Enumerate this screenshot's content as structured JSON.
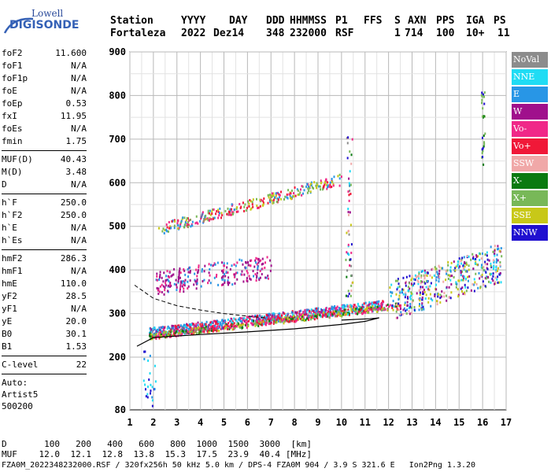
{
  "logo": {
    "line1": "Lowell",
    "line2": "DIGISONDE"
  },
  "header": {
    "labels": [
      "Station",
      "YYYY",
      "DAY",
      "DDD",
      "HHMMSS",
      "P1",
      "FFS",
      "S",
      "AXN",
      "PPS",
      "IGA",
      "PS"
    ],
    "values": [
      "Fortaleza",
      "2022",
      "Dez14",
      "348",
      "232000",
      "RSF",
      "",
      "1",
      "714",
      "100",
      "10+",
      "11"
    ]
  },
  "params": {
    "group1": [
      {
        "name": "foF2",
        "value": "11.600"
      },
      {
        "name": "foF1",
        "value": "N/A"
      },
      {
        "name": "foF1p",
        "value": "N/A"
      },
      {
        "name": "foE",
        "value": "N/A"
      },
      {
        "name": "foEp",
        "value": "0.53"
      },
      {
        "name": "fxI",
        "value": "11.95"
      },
      {
        "name": "foEs",
        "value": "N/A"
      },
      {
        "name": "fmin",
        "value": "1.75"
      }
    ],
    "group2": [
      {
        "name": "MUF(D)",
        "value": "40.43"
      },
      {
        "name": "M(D)",
        "value": "3.48"
      },
      {
        "name": "D",
        "value": "N/A"
      }
    ],
    "group3": [
      {
        "name": "h`F",
        "value": "250.0"
      },
      {
        "name": "h`F2",
        "value": "250.0"
      },
      {
        "name": "h`E",
        "value": "N/A"
      },
      {
        "name": "h`Es",
        "value": "N/A"
      }
    ],
    "group4": [
      {
        "name": "hmF2",
        "value": "286.3"
      },
      {
        "name": "hmF1",
        "value": "N/A"
      },
      {
        "name": "hmE",
        "value": "110.0"
      },
      {
        "name": "yF2",
        "value": "28.5"
      },
      {
        "name": "yF1",
        "value": "N/A"
      },
      {
        "name": "yE",
        "value": "20.0"
      },
      {
        "name": "B0",
        "value": "30.1"
      },
      {
        "name": "B1",
        "value": "1.53"
      }
    ],
    "group5": [
      {
        "name": "C-level",
        "value": "22"
      }
    ],
    "auto": [
      "Auto:",
      "Artist5",
      "500200"
    ]
  },
  "legend": [
    {
      "label": "NoVal",
      "color": "#8c8c8c"
    },
    {
      "label": "NNE",
      "color": "#20dcf4"
    },
    {
      "label": "E",
      "color": "#2896e6"
    },
    {
      "label": "W",
      "color": "#a0108c"
    },
    {
      "label": "Vo-",
      "color": "#f02888"
    },
    {
      "label": "Vo+",
      "color": "#f01838"
    },
    {
      "label": "SSW",
      "color": "#f0a8a8"
    },
    {
      "label": "X-",
      "color": "#0a7a10"
    },
    {
      "label": "X+",
      "color": "#78b858"
    },
    {
      "label": "SSE",
      "color": "#c8c818"
    },
    {
      "label": "NNW",
      "color": "#2010d0"
    }
  ],
  "chart_data": {
    "type": "scatter",
    "title": "",
    "xlabel": "",
    "ylabel": "",
    "xlim": [
      1,
      17
    ],
    "ylim": [
      80,
      900
    ],
    "x_ticks": [
      "1",
      "2",
      "3",
      "4",
      "5",
      "6",
      "7",
      "8",
      "9",
      "10",
      "11",
      "12",
      "13",
      "14",
      "15",
      "16",
      "17"
    ],
    "y_ticks": [
      "80",
      "200",
      "300",
      "400",
      "500",
      "600",
      "700",
      "800",
      "900"
    ],
    "grid": true,
    "traces": [
      {
        "name": "F2 O-trace",
        "color": "#2896e6",
        "x": [
          1.8,
          2.5,
          3.5,
          4.5,
          5.5,
          6.5,
          7.5,
          8.5,
          9.5,
          10.5,
          11.0,
          11.6
        ],
        "y": [
          260,
          265,
          270,
          276,
          282,
          288,
          294,
          300,
          306,
          312,
          318,
          322
        ]
      },
      {
        "name": "F2 X-trace",
        "color": "#f01838",
        "x": [
          1.8,
          3.0,
          5.0,
          7.0,
          9.0,
          11.0,
          12.0,
          12.5,
          13.0
        ],
        "y": [
          255,
          262,
          270,
          278,
          288,
          300,
          310,
          320,
          330
        ]
      },
      {
        "name": "multi-hop",
        "color": "#f01838",
        "x": [
          2.2,
          3.5,
          5.0,
          6.5,
          8.0,
          9.5,
          10.0
        ],
        "y": [
          495,
          515,
          535,
          555,
          575,
          598,
          610
        ]
      }
    ],
    "profile": {
      "x": [
        1.3,
        2.0,
        4.0,
        6.0,
        8.0,
        10.0,
        11.0,
        11.6,
        11.2,
        10.0
      ],
      "y": [
        225,
        245,
        252,
        258,
        265,
        275,
        282,
        290,
        288,
        285
      ]
    },
    "dashed_curve": {
      "x": [
        1.2,
        2.0,
        3.0,
        4.0,
        5.0,
        6.0,
        6.8
      ],
      "y": [
        365,
        335,
        318,
        308,
        300,
        294,
        290
      ]
    }
  },
  "bottom": {
    "d_label": "D",
    "d_values": [
      "100",
      "200",
      "400",
      "600",
      "800",
      "1000",
      "1500",
      "3000",
      "[km]"
    ],
    "muf_label": "MUF",
    "muf_values": [
      "12.0",
      "12.1",
      "12.8",
      "13.8",
      "15.3",
      "17.5",
      "23.9",
      "40.4",
      "[MHz]"
    ],
    "footer": "FZA0M_2022348232000.RSF / 320fx256h 50 kHz 5.0 km / DPS-4 FZA0M 904 / 3.9 S 321.6 E   Ion2Png 1.3.20"
  }
}
